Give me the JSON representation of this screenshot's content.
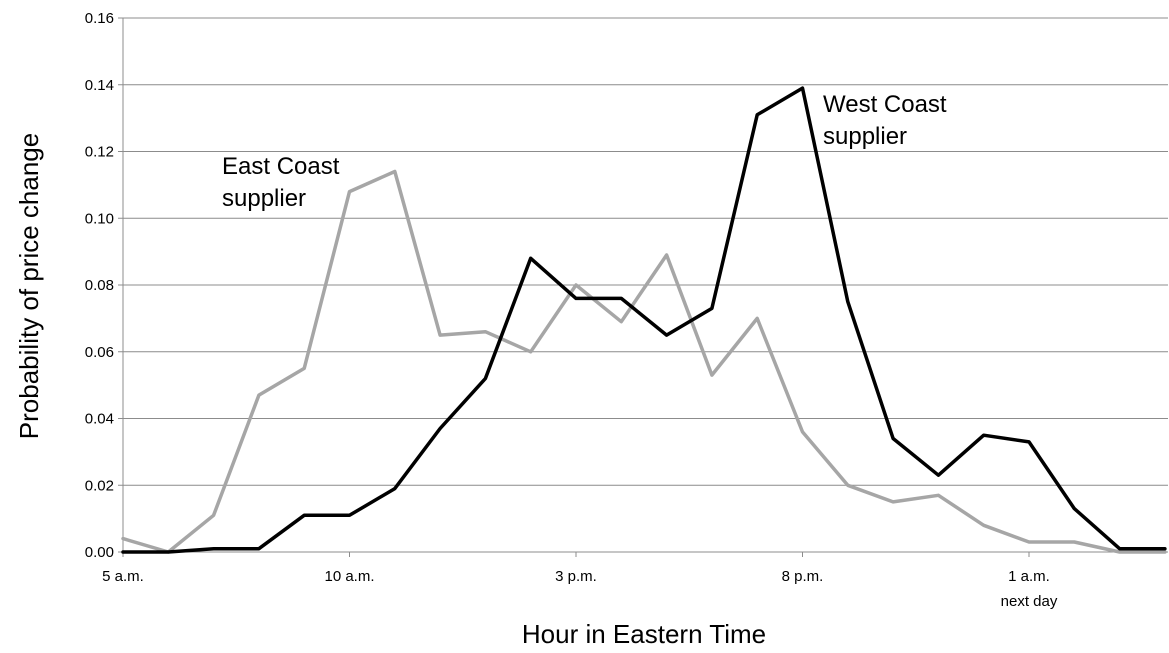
{
  "chart_data": {
    "type": "line",
    "title": "",
    "xlabel": "Hour in Eastern Time",
    "ylabel": "Probability of price change",
    "ylim": [
      0,
      0.16
    ],
    "yticks": [
      "0.00",
      "0.02",
      "0.04",
      "0.06",
      "0.08",
      "0.10",
      "0.12",
      "0.14",
      "0.16"
    ],
    "xticks": [
      {
        "hour": 0,
        "label": "5 a.m.",
        "sublabel": ""
      },
      {
        "hour": 5,
        "label": "10 a.m.",
        "sublabel": ""
      },
      {
        "hour": 10,
        "label": "3 p.m.",
        "sublabel": ""
      },
      {
        "hour": 15,
        "label": "8 p.m.",
        "sublabel": ""
      },
      {
        "hour": 20,
        "label": "1 a.m.",
        "sublabel": "next day"
      }
    ],
    "grid": "horizontal",
    "legend": "none",
    "x": [
      0,
      1,
      2,
      3,
      4,
      5,
      6,
      7,
      8,
      9,
      10,
      11,
      12,
      13,
      14,
      15,
      16,
      17,
      18,
      19,
      20,
      21,
      22,
      23
    ],
    "series": [
      {
        "name": "East Coast supplier",
        "color": "#a6a6a6",
        "values": [
          0.004,
          0.0,
          0.011,
          0.047,
          0.055,
          0.108,
          0.114,
          0.065,
          0.066,
          0.06,
          0.08,
          0.069,
          0.089,
          0.053,
          0.07,
          0.036,
          0.02,
          0.015,
          0.017,
          0.008,
          0.003,
          0.003,
          0.0,
          0.0
        ]
      },
      {
        "name": "West Coast supplier",
        "color": "#000000",
        "values": [
          0.0,
          0.0,
          0.001,
          0.001,
          0.011,
          0.011,
          0.019,
          0.037,
          0.052,
          0.088,
          0.076,
          0.076,
          0.065,
          0.073,
          0.131,
          0.139,
          0.075,
          0.034,
          0.023,
          0.035,
          0.033,
          0.013,
          0.001,
          0.001
        ]
      }
    ],
    "annotations": [
      {
        "series": "East Coast supplier",
        "lines": [
          "East Coast",
          "supplier"
        ]
      },
      {
        "series": "West Coast supplier",
        "lines": [
          "West Coast",
          "supplier"
        ]
      }
    ]
  }
}
